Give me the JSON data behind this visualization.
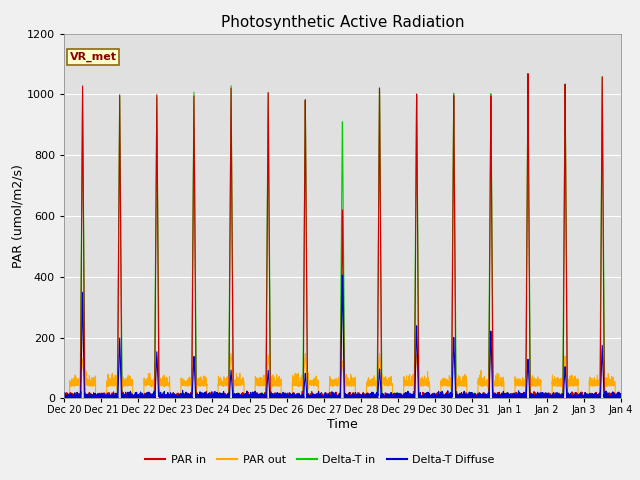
{
  "title": "Photosynthetic Active Radiation",
  "xlabel": "Time",
  "ylabel": "PAR (umol/m2/s)",
  "ylim": [
    0,
    1200
  ],
  "yticks": [
    0,
    200,
    400,
    600,
    800,
    1000,
    1200
  ],
  "legend_label": "VR_met",
  "plot_bg_color": "#e0e0e0",
  "fig_bg_color": "#f0f0f0",
  "colors": {
    "PAR in": "#cc0000",
    "PAR out": "#ffaa00",
    "Delta-T in": "#00cc00",
    "Delta-T Diffuse": "#0000cc"
  },
  "num_days": 15,
  "peaks_par_in": [
    1030,
    1005,
    1010,
    1010,
    1040,
    1030,
    1010,
    640,
    1050,
    1025,
    1015,
    1010,
    1080,
    1040,
    1060
  ],
  "peaks_par_out": [
    130,
    130,
    140,
    140,
    150,
    145,
    150,
    125,
    150,
    145,
    150,
    155,
    125,
    140,
    155
  ],
  "peaks_green": [
    1005,
    1000,
    1000,
    1020,
    1045,
    1025,
    1005,
    935,
    1040,
    1020,
    1020,
    1015,
    1040,
    1040,
    1060
  ],
  "peaks_blue": [
    350,
    200,
    155,
    140,
    95,
    95,
    85,
    420,
    100,
    245,
    205,
    225,
    130,
    105,
    175
  ],
  "x_tick_labels": [
    "Dec 20",
    "Dec 21",
    "Dec 22",
    "Dec 23",
    "Dec 24",
    "Dec 25",
    "Dec 26",
    "Dec 27",
    "Dec 28",
    "Dec 29",
    "Dec 30",
    "Dec 31",
    "Jan 1",
    "Jan 2",
    "Jan 3",
    "Jan 4"
  ]
}
